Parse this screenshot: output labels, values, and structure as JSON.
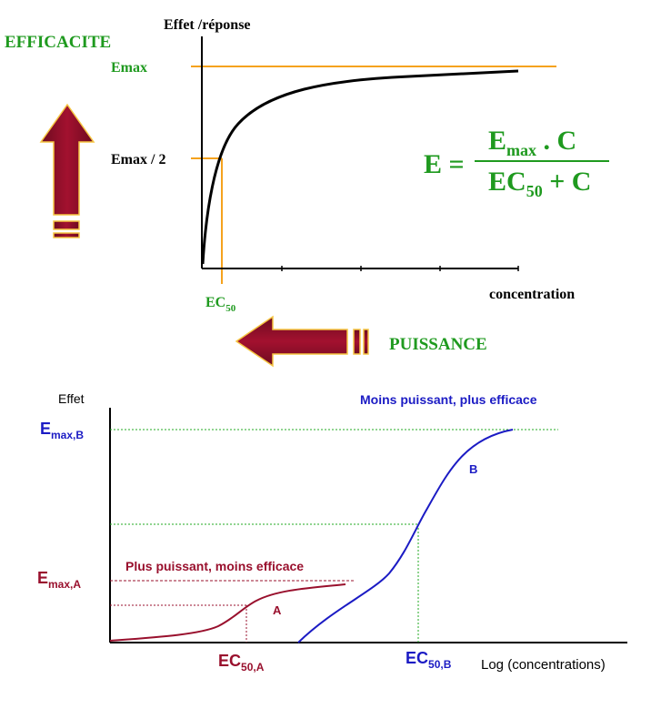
{
  "top": {
    "efficacite": "EFFICACITE",
    "ylabel": "Effet /réponse",
    "emax": "Emax",
    "emax_half": "Emax / 2",
    "ec50_main": "EC",
    "ec50_sub": "50",
    "xlabel": "concentration",
    "puissance": "PUISSANCE",
    "formula": {
      "lhs": "E =",
      "num_main": "E",
      "num_sub": "max",
      "num_rest": " . C",
      "den_main": "EC",
      "den_sub": "50",
      "den_rest": " + C"
    }
  },
  "bottom": {
    "ylabel": "Effet",
    "xlabel": "Log (concentrations)",
    "emax_b_main": "E",
    "emax_b_sub": "max",
    "emax_b_tag": ",B",
    "emax_a_main": "E",
    "emax_a_sub": "max",
    "emax_a_tag": ",A",
    "ec50_a_main": "EC",
    "ec50_a_sub": "50",
    "ec50_a_tag": ",A",
    "ec50_b_main": "EC",
    "ec50_b_sub": "50",
    "ec50_b_tag": ",B",
    "caption_b": "Moins puissant, plus efficace",
    "caption_a": "Plus puissant, moins efficace",
    "label_a": "A",
    "label_b": "B"
  },
  "colors": {
    "green": "#1f9a1f",
    "orange": "#f5a21d",
    "maroon": "#99102d",
    "blue": "#1b1bc4",
    "dotted_green": "#22aa22"
  }
}
